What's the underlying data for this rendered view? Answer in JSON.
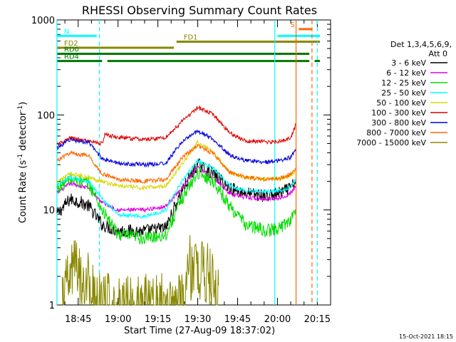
{
  "chart_data": {
    "type": "line",
    "title": "RHESSI Observing Summary Count Rates",
    "xlabel": "Start Time (27-Aug-09 18:37:02)",
    "ylabel_main": "Count Rate (s",
    "ylabel_sup1": "-1",
    "ylabel_mid": " detector",
    "ylabel_sup2": "-1",
    "ylabel_end": ")",
    "y_scale": "log",
    "ylim": [
      1,
      1000
    ],
    "xlim": [
      "18:37:02",
      "20:20:00"
    ],
    "ytick_labels": [
      {
        "value": 1,
        "label": "1"
      },
      {
        "value": 10,
        "label": "10"
      },
      {
        "value": 100,
        "label": "100"
      },
      {
        "value": 1000,
        "label": "1000"
      }
    ],
    "xtick_labels": [
      {
        "value": "18:45",
        "label": "18:45"
      },
      {
        "value": "19:00",
        "label": "19:00"
      },
      {
        "value": "19:15",
        "label": "19:15"
      },
      {
        "value": "19:30",
        "label": "19:30"
      },
      {
        "value": "19:45",
        "label": "19:45"
      },
      {
        "value": "20:00",
        "label": "20:00"
      },
      {
        "value": "20:15",
        "label": "20:15"
      }
    ],
    "legend_header": [
      "Det 1,3,4,5,6,9,",
      "Att 0"
    ],
    "legend_position": "right",
    "series": [
      {
        "name": "3 - 6 keV",
        "color": "#000000",
        "points": [
          [
            "18:37",
            9
          ],
          [
            "18:42",
            13
          ],
          [
            "18:46",
            12
          ],
          [
            "18:49",
            11
          ],
          [
            "18:54",
            7
          ],
          [
            "19:00",
            6
          ],
          [
            "19:10",
            6
          ],
          [
            "19:18",
            6.5
          ],
          [
            "19:24",
            16
          ],
          [
            "19:30",
            30
          ],
          [
            "19:36",
            24
          ],
          [
            "19:42",
            17
          ],
          [
            "19:48",
            15
          ],
          [
            "19:56",
            14
          ],
          [
            "20:01",
            15
          ],
          [
            "20:05",
            17
          ],
          [
            "20:07",
            20
          ]
        ]
      },
      {
        "name": "6 - 12 keV",
        "color": "#e000e0",
        "points": [
          [
            "18:37",
            15
          ],
          [
            "18:42",
            19
          ],
          [
            "18:49",
            17
          ],
          [
            "18:54",
            12
          ],
          [
            "19:00",
            10
          ],
          [
            "19:10",
            10
          ],
          [
            "19:18",
            11
          ],
          [
            "19:24",
            17
          ],
          [
            "19:30",
            28
          ],
          [
            "19:36",
            22
          ],
          [
            "19:42",
            15
          ],
          [
            "19:48",
            13.5
          ],
          [
            "19:56",
            13
          ],
          [
            "20:01",
            13.5
          ],
          [
            "20:05",
            15
          ],
          [
            "20:07",
            18
          ]
        ]
      },
      {
        "name": "12 - 25 keV",
        "color": "#00dd00",
        "points": [
          [
            "18:37",
            17
          ],
          [
            "18:42",
            21
          ],
          [
            "18:49",
            19
          ],
          [
            "18:54",
            10
          ],
          [
            "19:00",
            5.5
          ],
          [
            "19:10",
            5
          ],
          [
            "19:18",
            5.5
          ],
          [
            "19:24",
            13
          ],
          [
            "19:30",
            25
          ],
          [
            "19:36",
            20
          ],
          [
            "19:42",
            11
          ],
          [
            "19:48",
            7
          ],
          [
            "19:56",
            6
          ],
          [
            "20:01",
            6.5
          ],
          [
            "20:05",
            8
          ],
          [
            "20:07",
            10
          ]
        ]
      },
      {
        "name": "25 - 50 keV",
        "color": "#00ffff",
        "points": [
          [
            "18:37",
            18
          ],
          [
            "18:42",
            22
          ],
          [
            "18:49",
            20
          ],
          [
            "18:54",
            13
          ],
          [
            "19:00",
            9
          ],
          [
            "19:10",
            8.5
          ],
          [
            "19:18",
            10
          ],
          [
            "19:24",
            20
          ],
          [
            "19:30",
            33
          ],
          [
            "19:36",
            27
          ],
          [
            "19:42",
            18
          ],
          [
            "19:48",
            16
          ],
          [
            "19:56",
            15.5
          ],
          [
            "20:01",
            16
          ],
          [
            "20:05",
            17.5
          ],
          [
            "20:07",
            21
          ]
        ]
      },
      {
        "name": "50 - 100 keV",
        "color": "#d8d800",
        "points": [
          [
            "18:37",
            20
          ],
          [
            "18:42",
            24
          ],
          [
            "18:49",
            22
          ],
          [
            "18:54",
            20
          ],
          [
            "19:00",
            18
          ],
          [
            "19:10",
            17
          ],
          [
            "19:18",
            18
          ],
          [
            "19:24",
            30
          ],
          [
            "19:30",
            52
          ],
          [
            "19:36",
            40
          ],
          [
            "19:42",
            25
          ],
          [
            "19:48",
            22
          ],
          [
            "19:56",
            21
          ],
          [
            "20:01",
            21.5
          ],
          [
            "20:05",
            23
          ],
          [
            "20:07",
            26
          ]
        ]
      },
      {
        "name": "100 - 300 keV",
        "color": "#dd0000",
        "points": [
          [
            "18:37",
            48
          ],
          [
            "18:42",
            57
          ],
          [
            "18:49",
            53
          ],
          [
            "18:54",
            50
          ],
          [
            "18:55",
            62
          ],
          [
            "19:00",
            58
          ],
          [
            "19:10",
            55
          ],
          [
            "19:18",
            58
          ],
          [
            "19:24",
            85
          ],
          [
            "19:30",
            120
          ],
          [
            "19:36",
            100
          ],
          [
            "19:42",
            65
          ],
          [
            "19:48",
            53
          ],
          [
            "19:56",
            52
          ],
          [
            "20:01",
            53
          ],
          [
            "20:05",
            57
          ],
          [
            "20:07",
            80
          ]
        ]
      },
      {
        "name": "300 - 800 keV",
        "color": "#0000dd",
        "points": [
          [
            "18:37",
            45
          ],
          [
            "18:42",
            55
          ],
          [
            "18:49",
            51
          ],
          [
            "18:54",
            35
          ],
          [
            "19:00",
            31
          ],
          [
            "19:10",
            30
          ],
          [
            "19:18",
            31
          ],
          [
            "19:24",
            52
          ],
          [
            "19:30",
            68
          ],
          [
            "19:36",
            55
          ],
          [
            "19:42",
            38
          ],
          [
            "19:48",
            33
          ],
          [
            "19:56",
            32
          ],
          [
            "20:01",
            33
          ],
          [
            "20:05",
            36
          ],
          [
            "20:07",
            44
          ]
        ]
      },
      {
        "name": "800 - 7000 keV",
        "color": "#ff6600",
        "points": [
          [
            "18:37",
            33
          ],
          [
            "18:42",
            40
          ],
          [
            "18:49",
            37
          ],
          [
            "18:54",
            24
          ],
          [
            "19:00",
            21
          ],
          [
            "19:10",
            20
          ],
          [
            "19:18",
            21
          ],
          [
            "19:24",
            35
          ],
          [
            "19:30",
            48
          ],
          [
            "19:36",
            39
          ],
          [
            "19:42",
            25
          ],
          [
            "19:48",
            22
          ],
          [
            "19:56",
            21
          ],
          [
            "20:01",
            21.5
          ],
          [
            "20:05",
            24
          ],
          [
            "20:07",
            28
          ]
        ]
      },
      {
        "name": "7000 - 15000 keV",
        "color": "#888800",
        "points": [
          [
            "18:39",
            1
          ],
          [
            "18:43",
            2.5
          ],
          [
            "18:47",
            1.9
          ],
          [
            "18:50",
            1.6
          ],
          [
            "18:51",
            1
          ],
          [
            "19:25",
            1
          ],
          [
            "19:27",
            2.5
          ],
          [
            "19:33",
            2.3
          ],
          [
            "19:36",
            1.5
          ],
          [
            "19:38",
            1
          ]
        ]
      }
    ],
    "flag_bars": [
      {
        "label": "N",
        "color": "#00ffff",
        "start": "18:37",
        "end": "18:52",
        "value": 680
      },
      {
        "label": "N",
        "color": "#00ffff",
        "start": "20:00",
        "end": "20:16",
        "value": 680
      },
      {
        "label": "S",
        "color": "#ff6600",
        "start": "20:08",
        "end": "20:13",
        "value": 800
      },
      {
        "label": "FD1",
        "color": "#888800",
        "start": "19:22",
        "end": "20:16",
        "value": 590
      },
      {
        "label": "FD2",
        "color": "#888800",
        "start": "18:37",
        "end": "19:21",
        "value": 510
      },
      {
        "label": "RD0",
        "color": "#007700",
        "start": "18:37",
        "end": "20:12",
        "value": 440
      },
      {
        "label": "RD4",
        "color": "#007700",
        "start": "18:37",
        "end": "18:54",
        "value": 370
      },
      {
        "label": "RD4",
        "color": "#007700",
        "start": "18:56",
        "end": "20:12",
        "value": 370
      },
      {
        "label": "RD4",
        "color": "#007700",
        "start": "20:14",
        "end": "20:16",
        "value": 370
      }
    ],
    "vertical_markers": [
      {
        "time": "18:37",
        "color": "#00ffff",
        "style": "solid"
      },
      {
        "time": "18:53",
        "color": "#00ffff",
        "style": "dashed"
      },
      {
        "time": "19:59",
        "color": "#00ffff",
        "style": "solid"
      },
      {
        "time": "20:07",
        "color": "#ff6600",
        "style": "solid"
      },
      {
        "time": "20:13",
        "color": "#ff6600",
        "style": "dashed"
      },
      {
        "time": "20:15",
        "color": "#00ffff",
        "style": "dashed"
      }
    ],
    "footer_date": "15-Oct-2021 18:15"
  }
}
